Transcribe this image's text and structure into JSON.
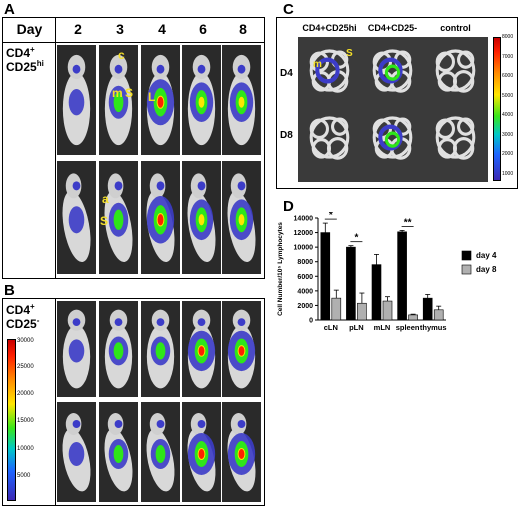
{
  "panelA": {
    "letter": "A",
    "day_header": "Day",
    "days": [
      "2",
      "3",
      "4",
      "6",
      "8"
    ],
    "row_label_line1": "CD4",
    "row_label_sup1": "+",
    "row_label_line2": "CD25",
    "row_label_sup2": "hi",
    "annotations": [
      "c",
      "m",
      "S",
      "L",
      "a",
      "S"
    ]
  },
  "panelB": {
    "letter": "B",
    "row_label_line1": "CD4",
    "row_label_sup1": "+",
    "row_label_line2": "CD25",
    "row_label_sup2": "-",
    "colorbar_ticks": [
      "30000",
      "25000",
      "20000",
      "15000",
      "10000",
      "5000"
    ]
  },
  "panelC": {
    "letter": "C",
    "col_headers": [
      "CD4+CD25hi",
      "CD4+CD25-",
      "control"
    ],
    "row_headers": [
      "D4",
      "D8"
    ],
    "annotations": [
      "m",
      "S"
    ],
    "colorbar_ticks": [
      "8000",
      "7000",
      "6000",
      "5000",
      "4000",
      "3000",
      "2000",
      "1000"
    ]
  },
  "panelD": {
    "letter": "D"
  },
  "chart_data": {
    "type": "bar",
    "categories": [
      "cLN",
      "pLN",
      "mLN",
      "spleen",
      "thymus"
    ],
    "ylabel": "Cell Number/10⁵ Lymphocytes",
    "ylim": [
      0,
      14000
    ],
    "yticks": [
      0,
      2000,
      4000,
      6000,
      8000,
      10000,
      12000,
      14000
    ],
    "series": [
      {
        "name": "day 4",
        "color": "#000000",
        "values": [
          12000,
          10000,
          7600,
          12100,
          3000
        ],
        "errors": [
          1300,
          200,
          1400,
          200,
          500
        ]
      },
      {
        "name": "day 8",
        "color": "#b0b0b0",
        "values": [
          3000,
          2300,
          2600,
          700,
          1400
        ],
        "errors": [
          1100,
          1400,
          600,
          100,
          500
        ]
      }
    ],
    "significance": [
      {
        "category": "cLN",
        "label": "*"
      },
      {
        "category": "pLN",
        "label": "*"
      },
      {
        "category": "spleen",
        "label": "**"
      }
    ],
    "legend_position": "right"
  },
  "colors": {
    "tile_bg": "#2a2a2a",
    "annotation": "#f5e028"
  }
}
